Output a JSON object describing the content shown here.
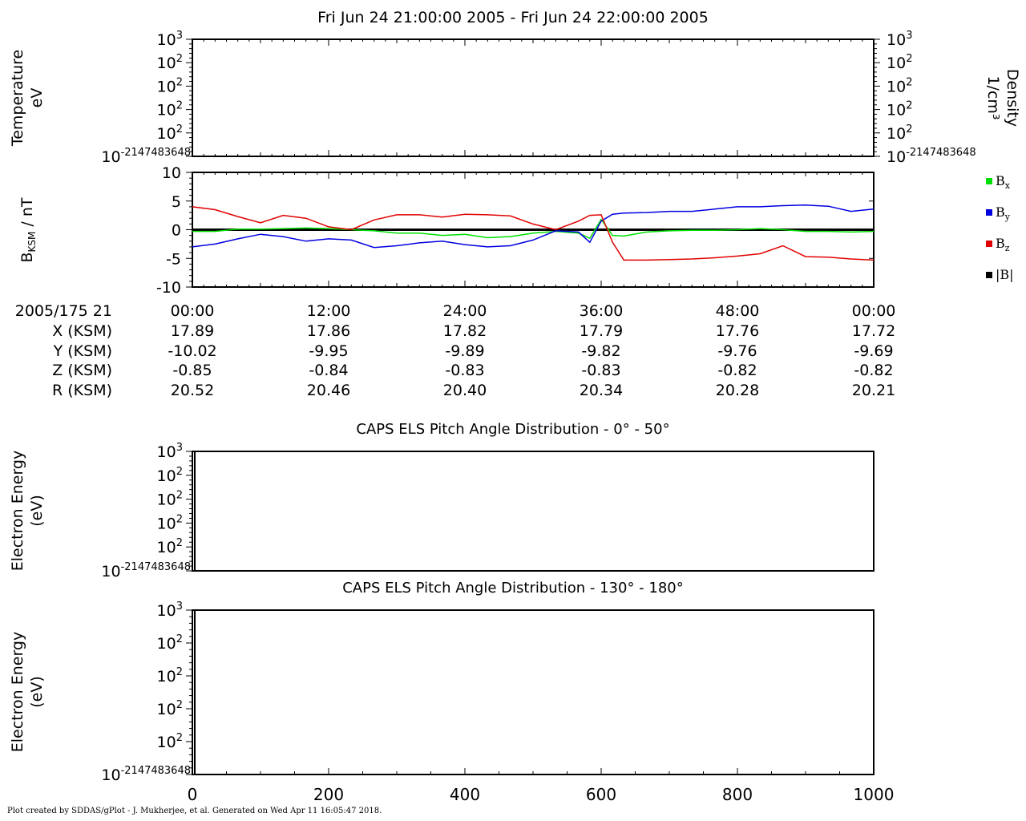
{
  "title": "Fri Jun 24 21:00:00 2005 - Fri Jun 24 22:00:00 2005",
  "footer": "Plot created by SDDAS/gPlot - J. Mukherjee, et al.  Generated on Wed Apr 11 16:05:47 2018.",
  "colors": {
    "bx": "#00e000",
    "by": "#0000e0",
    "bz": "#e00000",
    "b_mag": "#000000"
  },
  "chart_data": [
    {
      "id": "temperature",
      "type": "line",
      "ylabel_lines": [
        "Temperature",
        "eV"
      ],
      "ylabel_right_lines": [
        "Density",
        "1/cm³"
      ],
      "yticks": [
        {
          "base": "10",
          "exp": "3"
        },
        {
          "base": "10",
          "exp": "2"
        },
        {
          "base": "10",
          "exp": "2"
        },
        {
          "base": "10",
          "exp": "2"
        },
        {
          "base": "10",
          "exp": "2"
        },
        {
          "base": "10",
          "exp": "-2147483648"
        }
      ],
      "series": []
    },
    {
      "id": "magnetic_field",
      "type": "line",
      "ylabel": "B",
      "ylabel_sub": "KSM",
      "ylabel_suffix": " / nT",
      "ylim": [
        -10,
        10
      ],
      "yticks": [
        10,
        5,
        0,
        -5,
        -10
      ],
      "x_minutes": [
        0,
        2,
        4,
        6,
        8,
        10,
        12,
        14,
        16,
        18,
        20,
        22,
        24,
        26,
        28,
        30,
        32,
        34,
        35,
        36,
        37,
        38,
        40,
        42,
        44,
        46,
        48,
        50,
        52,
        54,
        56,
        58,
        60
      ],
      "series": [
        {
          "key": "bx",
          "name": "B",
          "sub": "x",
          "values": [
            -0.3,
            -0.3,
            0.1,
            0.1,
            0.2,
            0.3,
            0.2,
            0.0,
            -0.2,
            -0.6,
            -0.6,
            -1.0,
            -0.8,
            -1.4,
            -1.2,
            -0.6,
            -0.3,
            -0.6,
            -1.5,
            1.8,
            -1.0,
            -1.1,
            -0.4,
            -0.2,
            -0.1,
            -0.1,
            0.0,
            0.2,
            0.0,
            -0.3,
            -0.3,
            -0.4,
            -0.3
          ]
        },
        {
          "key": "by",
          "name": "B",
          "sub": "y",
          "values": [
            -3.0,
            -2.5,
            -1.6,
            -0.8,
            -1.2,
            -2.0,
            -1.6,
            -1.8,
            -3.1,
            -2.8,
            -2.3,
            -2.0,
            -2.6,
            -3.0,
            -2.8,
            -1.8,
            -0.2,
            -0.4,
            -2.2,
            1.5,
            2.7,
            2.9,
            3.0,
            3.2,
            3.2,
            3.6,
            4.0,
            4.0,
            4.2,
            4.3,
            4.1,
            3.2,
            3.6
          ]
        },
        {
          "key": "bz",
          "name": "B",
          "sub": "z",
          "values": [
            4.0,
            3.5,
            2.3,
            1.2,
            2.5,
            2.0,
            0.5,
            0.0,
            1.7,
            2.6,
            2.6,
            2.2,
            2.7,
            2.6,
            2.4,
            1.0,
            0.0,
            1.5,
            2.5,
            2.6,
            -2.2,
            -5.3,
            -5.3,
            -5.2,
            -5.1,
            -4.9,
            -4.6,
            -4.2,
            -2.8,
            -4.7,
            -4.8,
            -5.1,
            -5.3
          ]
        },
        {
          "key": "b_mag",
          "name": "|B|",
          "sub": "",
          "values": [
            0,
            0,
            0,
            0,
            0,
            0,
            0,
            0,
            0,
            0,
            0,
            0,
            0,
            0,
            0,
            0,
            0,
            0,
            0,
            0,
            0,
            0,
            0,
            0,
            0,
            0,
            0,
            0,
            0,
            0,
            0,
            0,
            0
          ]
        }
      ]
    },
    {
      "id": "els_0_50",
      "type": "heatmap",
      "title": "CAPS ELS Pitch Angle Distribution - 0° - 50°",
      "ylabel_lines": [
        "Electron Energy",
        "(eV)"
      ],
      "yticks": [
        {
          "base": "10",
          "exp": "3"
        },
        {
          "base": "10",
          "exp": "2"
        },
        {
          "base": "10",
          "exp": "2"
        },
        {
          "base": "10",
          "exp": "2"
        },
        {
          "base": "10",
          "exp": "2"
        },
        {
          "base": "10",
          "exp": "-2147483648"
        }
      ],
      "series": []
    },
    {
      "id": "els_130_180",
      "type": "heatmap",
      "title": "CAPS ELS Pitch Angle Distribution - 130° - 180°",
      "ylabel_lines": [
        "Electron Energy",
        "(eV)"
      ],
      "yticks": [
        {
          "base": "10",
          "exp": "3"
        },
        {
          "base": "10",
          "exp": "2"
        },
        {
          "base": "10",
          "exp": "2"
        },
        {
          "base": "10",
          "exp": "2"
        },
        {
          "base": "10",
          "exp": "2"
        },
        {
          "base": "10",
          "exp": "-2147483648"
        }
      ],
      "xlim": [
        0,
        1000
      ],
      "xticks": [
        "0",
        "200",
        "400",
        "600",
        "800",
        "1000"
      ],
      "series": []
    }
  ],
  "ephemeris": {
    "labels": [
      "2005/175 21",
      "X (KSM)",
      "Y (KSM)",
      "Z (KSM)",
      "R (KSM)"
    ],
    "columns": [
      [
        "00:00",
        "17.89",
        "-10.02",
        "-0.85",
        "20.52"
      ],
      [
        "12:00",
        "17.86",
        "-9.95",
        "-0.84",
        "20.46"
      ],
      [
        "24:00",
        "17.82",
        "-9.89",
        "-0.83",
        "20.40"
      ],
      [
        "36:00",
        "17.79",
        "-9.82",
        "-0.83",
        "20.34"
      ],
      [
        "48:00",
        "17.76",
        "-9.76",
        "-0.82",
        "20.28"
      ],
      [
        "00:00",
        "17.72",
        "-9.69",
        "-0.82",
        "20.21"
      ]
    ]
  }
}
